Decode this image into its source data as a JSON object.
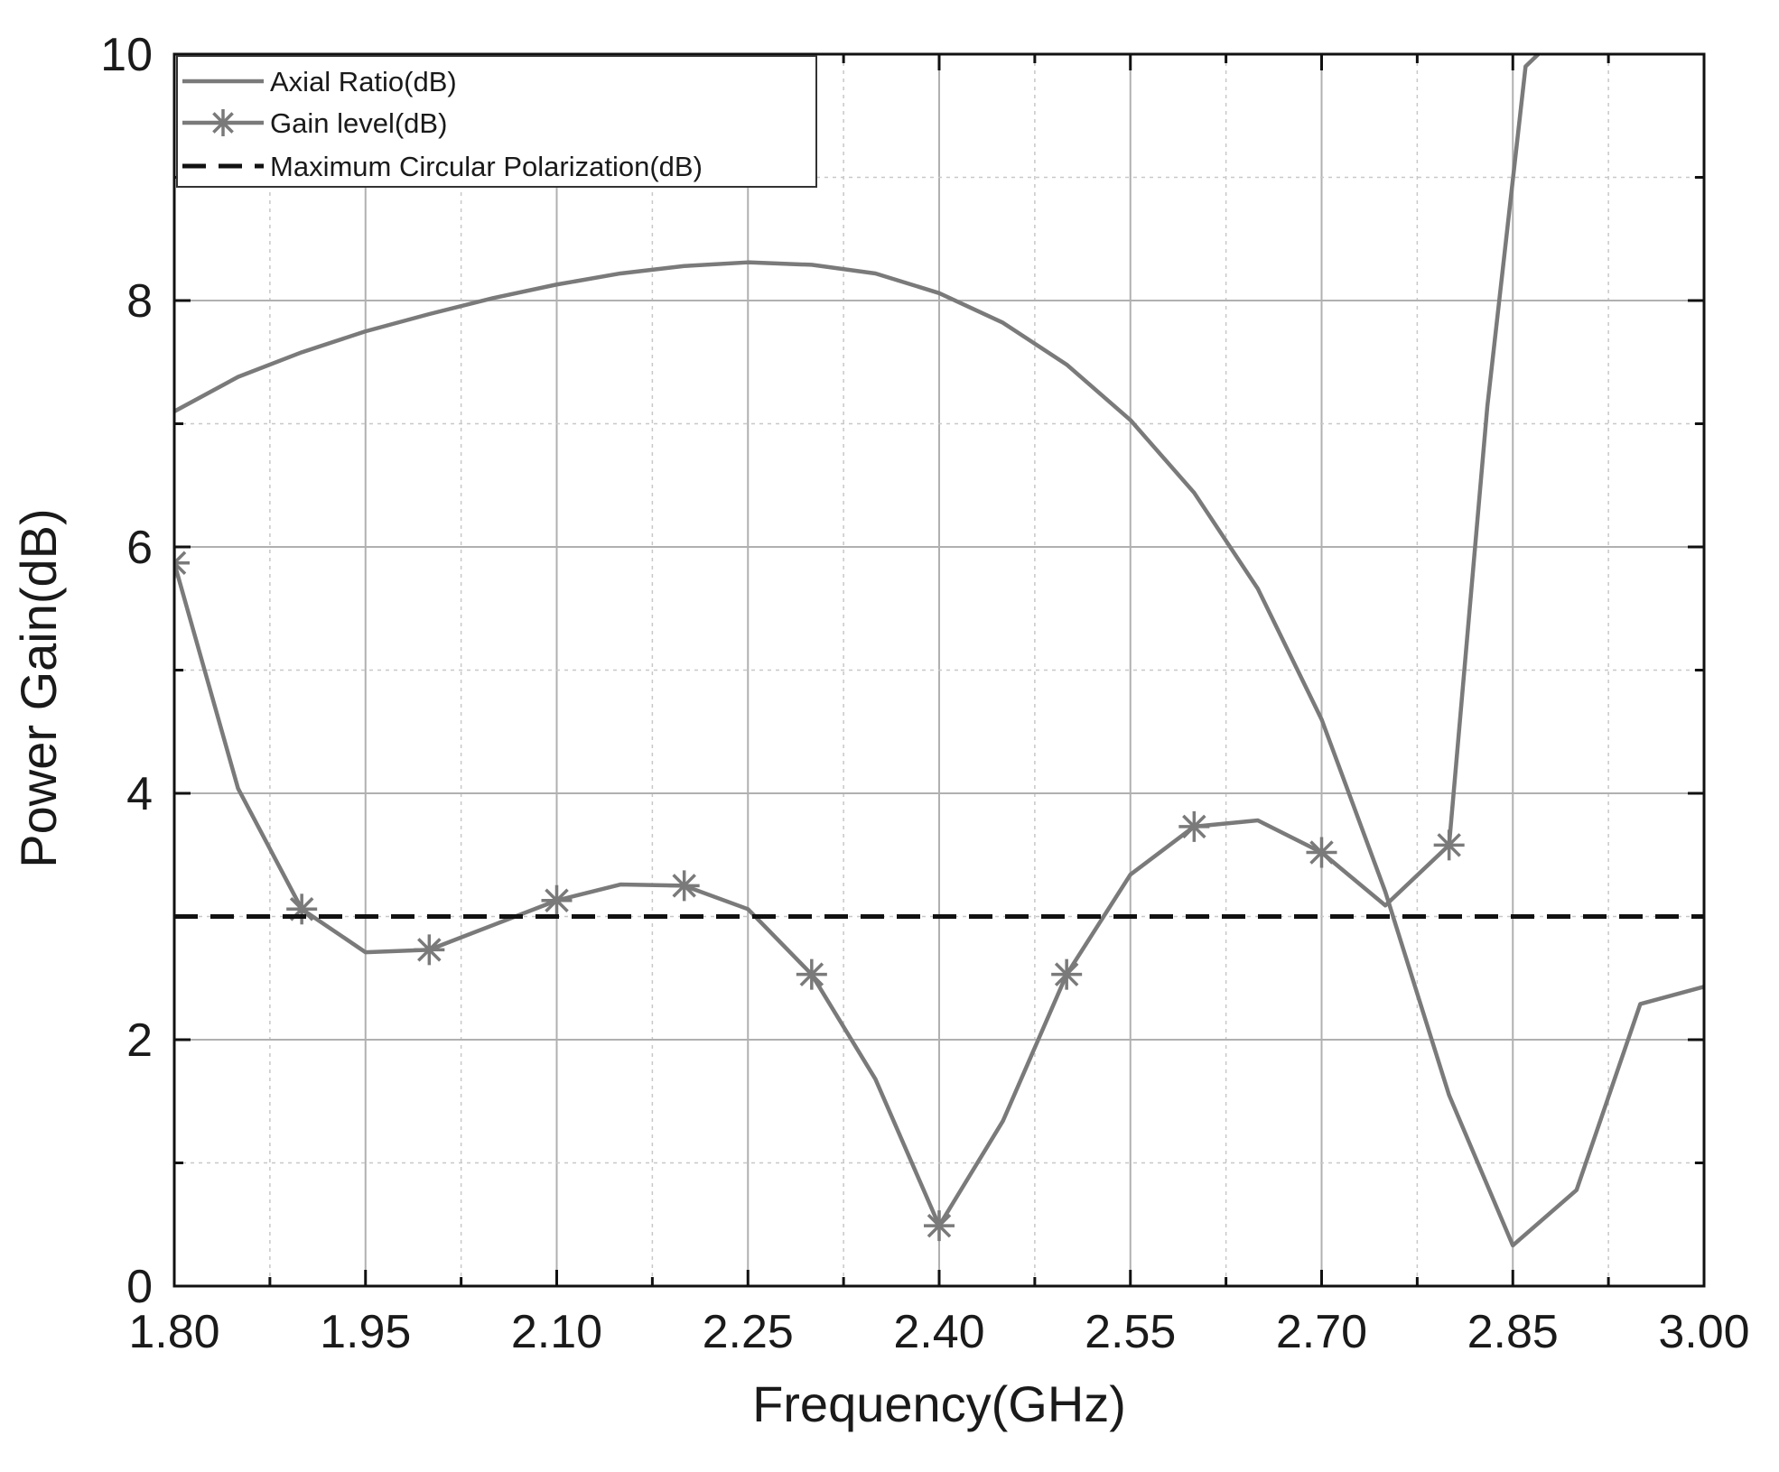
{
  "chart_data": {
    "type": "line",
    "xlabel": "Frequency(GHz)",
    "ylabel": "Power Gain(dB)",
    "xlim": [
      1.8,
      3.0
    ],
    "ylim": [
      0,
      10
    ],
    "x_ticks": [
      "1.80",
      "1.95",
      "2.10",
      "2.25",
      "2.40",
      "2.55",
      "2.70",
      "2.85",
      "3.00"
    ],
    "y_ticks": [
      "0",
      "2",
      "4",
      "6",
      "8",
      "10"
    ],
    "grid": true,
    "legend_position": "top-left",
    "series": [
      {
        "name": "Axial Ratio(dB)",
        "style": "solid",
        "color": "#7a7a7a",
        "x": [
          1.8,
          1.85,
          1.9,
          1.95,
          2.0,
          2.05,
          2.1,
          2.15,
          2.2,
          2.25,
          2.3,
          2.35,
          2.4,
          2.45,
          2.5,
          2.55,
          2.6,
          2.65,
          2.7,
          2.75,
          2.8,
          2.85,
          2.9,
          2.95,
          3.0
        ],
        "y": [
          7.1,
          7.38,
          7.58,
          7.75,
          7.89,
          8.02,
          8.13,
          8.22,
          8.28,
          8.31,
          8.29,
          8.22,
          8.06,
          7.82,
          7.48,
          7.03,
          6.44,
          5.66,
          4.6,
          3.2,
          1.55,
          0.33,
          0.78,
          2.29,
          2.43
        ]
      },
      {
        "name": "Gain level(dB)",
        "style": "solid-star",
        "color": "#7a7a7a",
        "x": [
          1.8,
          1.85,
          1.9,
          1.95,
          2.0,
          2.05,
          2.1,
          2.15,
          2.2,
          2.25,
          2.3,
          2.35,
          2.4,
          2.45,
          2.5,
          2.55,
          2.6,
          2.65,
          2.7,
          2.75,
          2.8,
          2.83,
          2.86,
          2.87
        ],
        "y": [
          5.87,
          4.04,
          3.06,
          2.71,
          2.73,
          2.93,
          3.13,
          3.26,
          3.25,
          3.06,
          2.53,
          1.68,
          0.49,
          1.34,
          2.53,
          3.34,
          3.73,
          3.78,
          3.52,
          3.09,
          3.58,
          7.14,
          9.9,
          10.0
        ],
        "markers_at": [
          1.8,
          1.9,
          2.0,
          2.1,
          2.2,
          2.3,
          2.4,
          2.5,
          2.6,
          2.7,
          2.8
        ]
      },
      {
        "name": "Maximum Circular Polarization(dB)",
        "style": "dashed",
        "color": "#111111",
        "x": [
          1.8,
          3.0
        ],
        "y": [
          3,
          3
        ]
      }
    ]
  }
}
